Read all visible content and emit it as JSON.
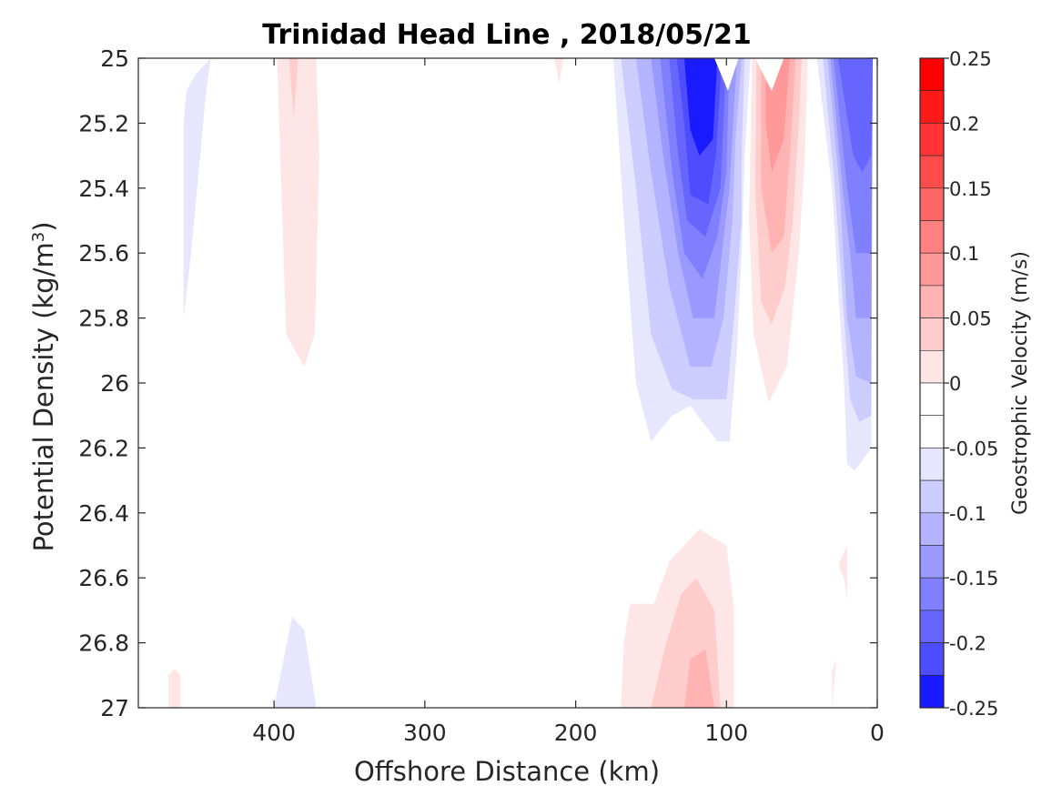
{
  "chart_data": {
    "type": "contour",
    "title": "Trinidad Head Line , 2018/05/21",
    "xlabel": "Offshore Distance (km)",
    "ylabel_main": "Potential Density (kg/m",
    "ylabel_sup": "3",
    "ylabel_close": ")",
    "colorbar_label": "Geostrophic Velocity (m/s)",
    "xlim": [
      490,
      0
    ],
    "x_reversed": true,
    "ylim": [
      25,
      27
    ],
    "y_reversed": true,
    "x_ticks": [
      400,
      300,
      200,
      100,
      0
    ],
    "x_tick_labels": [
      "400",
      "300",
      "200",
      "100",
      "0"
    ],
    "y_ticks": [
      25,
      25.2,
      25.4,
      25.6,
      25.8,
      26,
      26.2,
      26.4,
      26.6,
      26.8,
      27
    ],
    "y_tick_labels": [
      "25",
      "25.2",
      "25.4",
      "25.6",
      "25.8",
      "26",
      "26.2",
      "26.4",
      "26.6",
      "26.8",
      "27"
    ],
    "colorbar_limits": [
      -0.25,
      0.25
    ],
    "colorbar_ticks": [
      0.25,
      0.2,
      0.15,
      0.1,
      0.05,
      0,
      -0.05,
      -0.1,
      -0.15,
      -0.2,
      -0.25
    ],
    "colorbar_tick_labels": [
      "0.25",
      "0.2",
      "0.15",
      "0.1",
      "0.05",
      "0",
      "-0.05",
      "-0.1",
      "-0.15",
      "-0.2",
      "-0.25"
    ],
    "levels": [
      {
        "lo": 0.225,
        "hi": 0.25,
        "color": "#ff0000"
      },
      {
        "lo": 0.2,
        "hi": 0.225,
        "color": "#ff1a1a"
      },
      {
        "lo": 0.175,
        "hi": 0.2,
        "color": "#ff3333"
      },
      {
        "lo": 0.15,
        "hi": 0.175,
        "color": "#ff4d4d"
      },
      {
        "lo": 0.125,
        "hi": 0.15,
        "color": "#ff6666"
      },
      {
        "lo": 0.1,
        "hi": 0.125,
        "color": "#ff8080"
      },
      {
        "lo": 0.075,
        "hi": 0.1,
        "color": "#ff9999"
      },
      {
        "lo": 0.05,
        "hi": 0.075,
        "color": "#ffb3b3"
      },
      {
        "lo": 0.025,
        "hi": 0.05,
        "color": "#ffcccc"
      },
      {
        "lo": 0.0,
        "hi": 0.025,
        "color": "#ffe6e6"
      },
      {
        "lo": -0.025,
        "hi": 0.0,
        "color": "#ffffff"
      },
      {
        "lo": -0.05,
        "hi": -0.025,
        "color": "#ffffff"
      },
      {
        "lo": -0.075,
        "hi": -0.05,
        "color": "#e6e6ff"
      },
      {
        "lo": -0.1,
        "hi": -0.075,
        "color": "#ccccff"
      },
      {
        "lo": -0.125,
        "hi": -0.1,
        "color": "#b3b3ff"
      },
      {
        "lo": -0.15,
        "hi": -0.125,
        "color": "#9999ff"
      },
      {
        "lo": -0.175,
        "hi": -0.15,
        "color": "#8080ff"
      },
      {
        "lo": -0.2,
        "hi": -0.175,
        "color": "#6666ff"
      },
      {
        "lo": -0.225,
        "hi": -0.2,
        "color": "#4d4dff"
      },
      {
        "lo": -0.25,
        "hi": -0.225,
        "color": "#1a1aff"
      }
    ],
    "regions": [
      {
        "name": "offshore-negative-lobe",
        "color": "#e6e6ff",
        "points": [
          [
            460,
            25.2
          ],
          [
            460,
            25.8
          ],
          [
            455,
            25.6
          ],
          [
            445,
            25.1
          ],
          [
            442,
            25.0
          ],
          [
            452,
            25.05
          ],
          [
            458,
            25.1
          ]
        ]
      },
      {
        "name": "offshore-positive-lobe",
        "color": "#ffe6e6",
        "points": [
          [
            398,
            25.0
          ],
          [
            392,
            25.85
          ],
          [
            380,
            25.95
          ],
          [
            373,
            25.85
          ],
          [
            370,
            25.3
          ],
          [
            372,
            25.0
          ]
        ]
      },
      {
        "name": "offshore-positive-core",
        "color": "#ffcccc",
        "points": [
          [
            390,
            25.0
          ],
          [
            387,
            25.18
          ],
          [
            384,
            25.0
          ]
        ]
      },
      {
        "name": "small-positive-spot",
        "color": "#ffe6e6",
        "points": [
          [
            214,
            25.0
          ],
          [
            211,
            25.08
          ],
          [
            208,
            25.0
          ]
        ]
      },
      {
        "name": "deep-offshore-negative",
        "color": "#e6e6ff",
        "points": [
          [
            400,
            27.0
          ],
          [
            388,
            26.72
          ],
          [
            380,
            26.76
          ],
          [
            372,
            27.0
          ]
        ]
      },
      {
        "name": "deep-offshore-positive",
        "color": "#ffe6e6",
        "points": [
          [
            470,
            26.9
          ],
          [
            466,
            26.88
          ],
          [
            462,
            26.9
          ],
          [
            462,
            27.0
          ],
          [
            470,
            27.0
          ]
        ]
      },
      {
        "name": "neg-band1",
        "color": "#e6e6ff",
        "points": [
          [
            175,
            25.0
          ],
          [
            168,
            25.5
          ],
          [
            160,
            26.0
          ],
          [
            150,
            26.18
          ],
          [
            136,
            26.1
          ],
          [
            124,
            26.07
          ],
          [
            106,
            26.18
          ],
          [
            98,
            26.18
          ],
          [
            93,
            25.9
          ],
          [
            90,
            25.6
          ],
          [
            88,
            25.3
          ],
          [
            84,
            25.0
          ]
        ]
      },
      {
        "name": "neg-band2",
        "color": "#ccccff",
        "points": [
          [
            170,
            25.0
          ],
          [
            160,
            25.4
          ],
          [
            150,
            25.85
          ],
          [
            136,
            26.02
          ],
          [
            122,
            26.05
          ],
          [
            100,
            26.05
          ],
          [
            95,
            25.8
          ],
          [
            90,
            25.5
          ],
          [
            90,
            25.3
          ],
          [
            88,
            25.0
          ]
        ]
      },
      {
        "name": "neg-band3",
        "color": "#b3b3ff",
        "points": [
          [
            160,
            25.0
          ],
          [
            150,
            25.35
          ],
          [
            138,
            25.7
          ],
          [
            124,
            25.95
          ],
          [
            110,
            25.95
          ],
          [
            102,
            25.8
          ],
          [
            96,
            25.5
          ],
          [
            94,
            25.25
          ],
          [
            90,
            25.0
          ]
        ]
      },
      {
        "name": "neg-band4",
        "color": "#9999ff",
        "points": [
          [
            150,
            25.0
          ],
          [
            142,
            25.3
          ],
          [
            132,
            25.6
          ],
          [
            122,
            25.8
          ],
          [
            108,
            25.8
          ],
          [
            103,
            25.6
          ],
          [
            98,
            25.4
          ],
          [
            95,
            25.15
          ],
          [
            93,
            25.0
          ]
        ]
      },
      {
        "name": "neg-band5",
        "color": "#8080ff",
        "points": [
          [
            144,
            25.0
          ],
          [
            136,
            25.35
          ],
          [
            128,
            25.6
          ],
          [
            116,
            25.68
          ],
          [
            106,
            25.55
          ],
          [
            100,
            25.35
          ],
          [
            98,
            25.0
          ]
        ]
      },
      {
        "name": "neg-band6",
        "color": "#6666ff",
        "points": [
          [
            138,
            25.0
          ],
          [
            132,
            25.3
          ],
          [
            126,
            25.5
          ],
          [
            114,
            25.55
          ],
          [
            104,
            25.4
          ],
          [
            102,
            25.2
          ],
          [
            100,
            25.0
          ]
        ]
      },
      {
        "name": "neg-band7",
        "color": "#4d4dff",
        "points": [
          [
            133,
            25.0
          ],
          [
            128,
            25.2
          ],
          [
            124,
            25.42
          ],
          [
            112,
            25.45
          ],
          [
            107,
            25.3
          ],
          [
            103,
            25.0
          ]
        ]
      },
      {
        "name": "neg-band8",
        "color": "#1a1aff",
        "points": [
          [
            128,
            25.0
          ],
          [
            124,
            25.22
          ],
          [
            118,
            25.3
          ],
          [
            109,
            25.25
          ],
          [
            106,
            25.0
          ]
        ]
      },
      {
        "name": "coastal-neg-band1",
        "color": "#e6e6ff",
        "points": [
          [
            40,
            25.0
          ],
          [
            30,
            25.4
          ],
          [
            22,
            26.0
          ],
          [
            20,
            26.25
          ],
          [
            15,
            26.27
          ],
          [
            4,
            26.2
          ],
          [
            3,
            25.0
          ]
        ]
      },
      {
        "name": "coastal-neg-band2",
        "color": "#ccccff",
        "points": [
          [
            36,
            25.0
          ],
          [
            28,
            25.4
          ],
          [
            22,
            25.8
          ],
          [
            18,
            26.05
          ],
          [
            12,
            26.12
          ],
          [
            4,
            26.1
          ],
          [
            3,
            25.0
          ]
        ]
      },
      {
        "name": "coastal-neg-band3",
        "color": "#b3b3ff",
        "points": [
          [
            33,
            25.0
          ],
          [
            25,
            25.4
          ],
          [
            20,
            25.8
          ],
          [
            14,
            25.98
          ],
          [
            4,
            26.0
          ],
          [
            3,
            25.0
          ]
        ]
      },
      {
        "name": "coastal-neg-band4",
        "color": "#9999ff",
        "points": [
          [
            31,
            25.0
          ],
          [
            23,
            25.4
          ],
          [
            18,
            25.6
          ],
          [
            14,
            25.8
          ],
          [
            4,
            25.8
          ],
          [
            3,
            25.0
          ]
        ]
      },
      {
        "name": "coastal-neg-band5",
        "color": "#8080ff",
        "points": [
          [
            29,
            25.0
          ],
          [
            20,
            25.4
          ],
          [
            14,
            25.6
          ],
          [
            4,
            25.6
          ],
          [
            3,
            25.0
          ]
        ]
      },
      {
        "name": "coastal-neg-band6",
        "color": "#6666ff",
        "points": [
          [
            26,
            25.0
          ],
          [
            16,
            25.3
          ],
          [
            10,
            25.35
          ],
          [
            4,
            25.3
          ],
          [
            3,
            25.0
          ]
        ]
      },
      {
        "name": "positive-band1",
        "color": "#ffe6e6",
        "points": [
          [
            83,
            25.0
          ],
          [
            85,
            25.5
          ],
          [
            82,
            25.85
          ],
          [
            72,
            26.06
          ],
          [
            60,
            25.95
          ],
          [
            52,
            25.6
          ],
          [
            48,
            25.3
          ],
          [
            46,
            25.0
          ]
        ]
      },
      {
        "name": "positive-band2",
        "color": "#ffcccc",
        "points": [
          [
            80,
            25.0
          ],
          [
            81,
            25.4
          ],
          [
            77,
            25.75
          ],
          [
            70,
            25.82
          ],
          [
            61,
            25.7
          ],
          [
            56,
            25.5
          ],
          [
            52,
            25.2
          ],
          [
            50,
            25.0
          ]
        ]
      },
      {
        "name": "positive-band3",
        "color": "#ffb3b3",
        "points": [
          [
            77,
            25.0
          ],
          [
            77,
            25.4
          ],
          [
            70,
            25.6
          ],
          [
            62,
            25.55
          ],
          [
            58,
            25.3
          ],
          [
            54,
            25.0
          ]
        ]
      },
      {
        "name": "positive-band4",
        "color": "#ff9999",
        "points": [
          [
            74,
            25.0
          ],
          [
            74,
            25.2
          ],
          [
            70,
            25.35
          ],
          [
            62,
            25.25
          ],
          [
            58,
            25.0
          ]
        ]
      },
      {
        "name": "deep-positive-band1",
        "color": "#ffe6e6",
        "points": [
          [
            170,
            27.0
          ],
          [
            168,
            26.8
          ],
          [
            164,
            26.68
          ],
          [
            148,
            26.68
          ],
          [
            138,
            26.55
          ],
          [
            118,
            26.45
          ],
          [
            100,
            26.5
          ],
          [
            95,
            26.7
          ],
          [
            95,
            27.0
          ]
        ]
      },
      {
        "name": "deep-positive-band2",
        "color": "#ffcccc",
        "points": [
          [
            150,
            27.0
          ],
          [
            140,
            26.8
          ],
          [
            130,
            26.65
          ],
          [
            120,
            26.6
          ],
          [
            108,
            26.7
          ],
          [
            104,
            27.0
          ]
        ]
      },
      {
        "name": "deep-positive-band3",
        "color": "#ffb3b3",
        "points": [
          [
            128,
            27.0
          ],
          [
            124,
            26.85
          ],
          [
            114,
            26.82
          ],
          [
            108,
            27.0
          ]
        ]
      },
      {
        "name": "coastal-deep-positive",
        "color": "#ffe6e6",
        "points": [
          [
            30,
            27.0
          ],
          [
            28,
            26.9
          ],
          [
            26,
            26.8
          ],
          [
            20,
            26.7
          ],
          [
            20,
            26.5
          ],
          [
            25,
            26.55
          ],
          [
            28,
            26.65
          ],
          [
            30,
            26.85
          ]
        ]
      },
      {
        "name": "top-white-notch1",
        "color": "#ffffff",
        "points": [
          [
            108,
            25.0
          ],
          [
            99,
            25.1
          ],
          [
            92,
            25.0
          ]
        ]
      },
      {
        "name": "top-white-notch2",
        "color": "#ffffff",
        "points": [
          [
            81,
            25.0
          ],
          [
            70,
            25.1
          ],
          [
            62,
            25.0
          ]
        ]
      },
      {
        "name": "coastal-white-notch",
        "color": "#ffffff",
        "points": [
          [
            31,
            26.9
          ],
          [
            23,
            26.8
          ],
          [
            19,
            26.7
          ],
          [
            22,
            26.6
          ],
          [
            27,
            26.55
          ],
          [
            31,
            26.65
          ]
        ]
      }
    ]
  }
}
